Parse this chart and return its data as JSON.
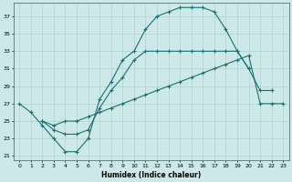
{
  "xlabel": "Humidex (Indice chaleur)",
  "background_color": "#cce8e8",
  "grid_color": "#aacccc",
  "line_color": "#1a7070",
  "xlim": [
    -0.5,
    23.5
  ],
  "ylim": [
    20.5,
    38.5
  ],
  "yticks": [
    21,
    23,
    25,
    27,
    29,
    31,
    33,
    35,
    37
  ],
  "xticks": [
    0,
    1,
    2,
    3,
    4,
    5,
    6,
    7,
    8,
    9,
    10,
    11,
    12,
    13,
    14,
    15,
    16,
    17,
    18,
    19,
    20,
    21,
    22,
    23
  ],
  "curve1_x": [
    0,
    1,
    2,
    3,
    4,
    5,
    6,
    7,
    8,
    9,
    10,
    11,
    12,
    13,
    14,
    15,
    16,
    17,
    18,
    19,
    20
  ],
  "curve1_y": [
    27,
    26,
    24.5,
    23,
    21.5,
    21.5,
    23,
    27.5,
    29.5,
    32,
    33,
    35.5,
    37,
    37.5,
    38,
    38,
    38,
    37.5,
    35.5,
    33,
    31
  ],
  "curve2_x": [
    2,
    3,
    4,
    5,
    6,
    7,
    8,
    9,
    10,
    11,
    12,
    13,
    14,
    15,
    16,
    17,
    18,
    19,
    20,
    21,
    22
  ],
  "curve2_y": [
    25,
    24,
    23.5,
    23.5,
    24,
    26.5,
    28.5,
    30,
    32,
    33,
    33,
    33,
    33,
    33,
    33,
    33,
    33,
    33,
    31,
    28.5,
    28.5
  ],
  "curve3_x": [
    2,
    3,
    4,
    5,
    6,
    7,
    8,
    9,
    10,
    11,
    12,
    13,
    14,
    15,
    16,
    17,
    18,
    19,
    20,
    21,
    22,
    23
  ],
  "curve3_y": [
    25,
    24.5,
    25,
    25,
    25.5,
    26,
    26.5,
    27,
    27.5,
    28,
    28.5,
    29,
    29.5,
    30,
    30.5,
    31,
    31.5,
    32,
    32.5,
    27,
    27,
    27
  ],
  "xlabel_fontsize": 5.5,
  "tick_fontsize": 4.5,
  "linewidth": 0.8,
  "markersize": 3.0
}
